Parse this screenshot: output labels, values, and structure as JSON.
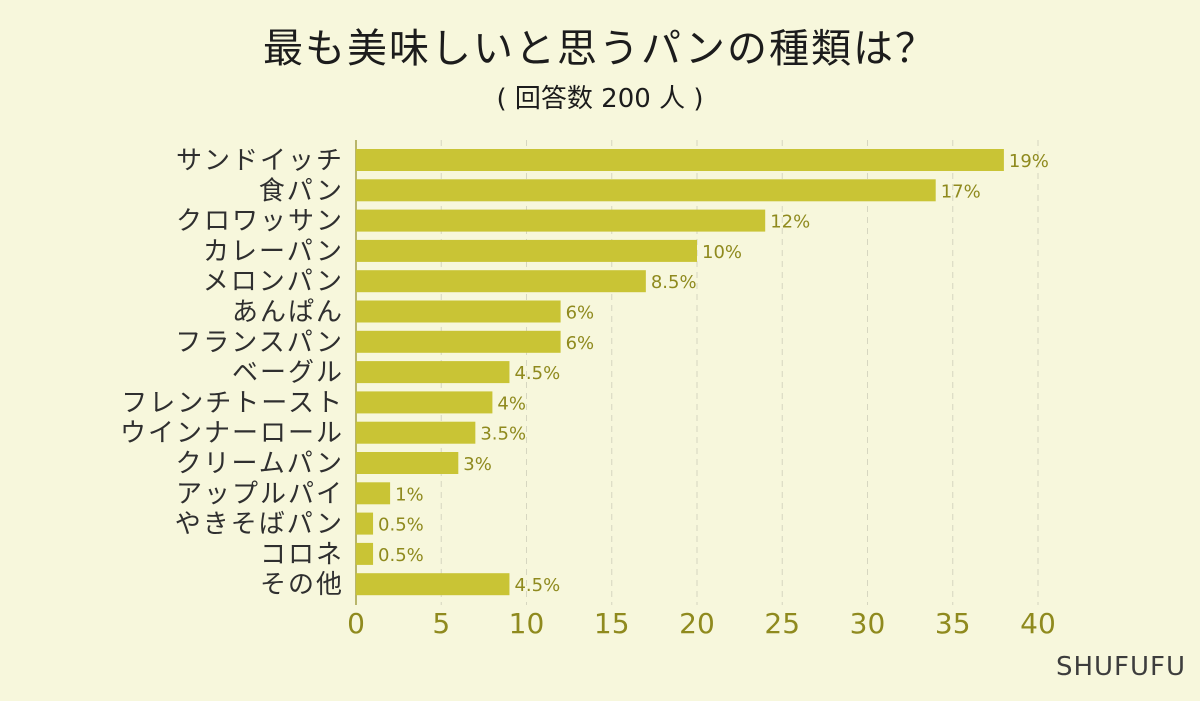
{
  "chart_data": {
    "type": "bar",
    "orientation": "horizontal",
    "title": "最も美味しいと思うパンの種類は？",
    "subtitle": "( 回答数 200 人 )",
    "categories": [
      "サンドイッチ",
      "食パン",
      "クロワッサン",
      "カレーパン",
      "メロンパン",
      "あんぱん",
      "フランスパン",
      "ベーグル",
      "フレンチトースト",
      "ウインナーロール",
      "クリームパン",
      "アップルパイ",
      "やきそばパン",
      "コロネ",
      "その他"
    ],
    "values": [
      38,
      34,
      24,
      20,
      17,
      12,
      12,
      9,
      8,
      7,
      6,
      2,
      1,
      1,
      9
    ],
    "data_labels": [
      "19%",
      "17%",
      "12%",
      "10%",
      "8.5%",
      "6%",
      "6%",
      "4.5%",
      "4%",
      "3.5%",
      "3%",
      "1%",
      "0.5%",
      "0.5%",
      "4.5%"
    ],
    "xlim": [
      0,
      40
    ],
    "xticks": [
      0,
      5,
      10,
      15,
      20,
      25,
      30,
      35,
      40
    ],
    "xlabel": "",
    "ylabel": "",
    "grid": "vertical dashed",
    "legend": "none",
    "colors": {
      "bar": "#c9c435",
      "axis_text": "#8f8a1e",
      "category_text": "#2f2f2f",
      "grid": "#d6d6c0",
      "background": "#f7f7dc"
    }
  },
  "watermark": "SHUFUFU"
}
